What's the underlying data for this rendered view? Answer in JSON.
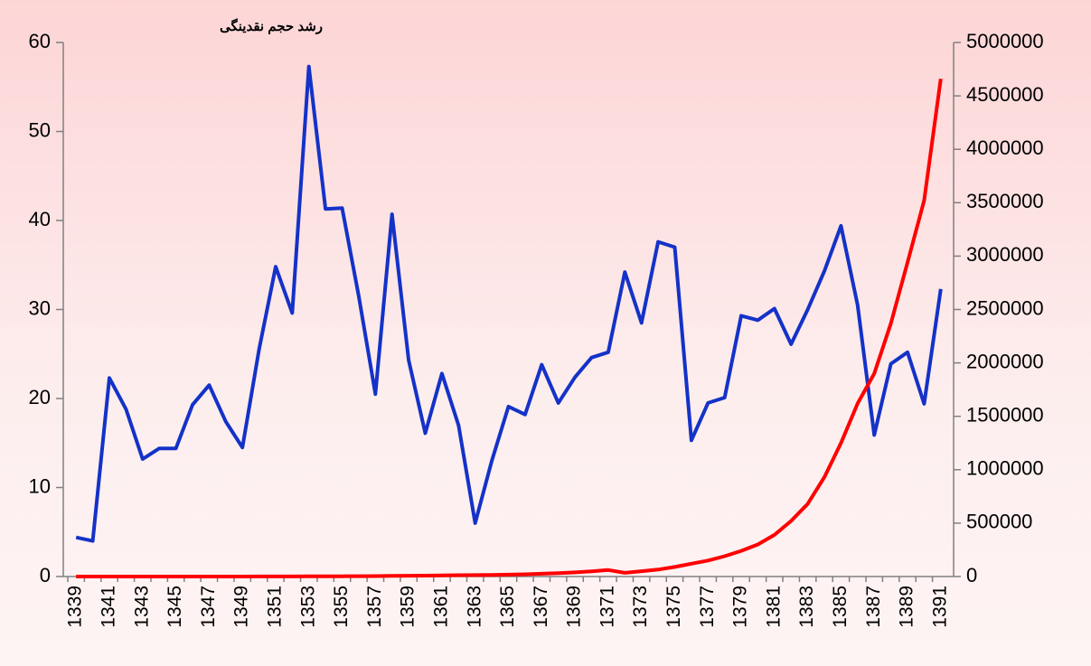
{
  "chart_data": {
    "type": "line",
    "title": "رشد حجم نقدینگی",
    "categories": [
      "1339",
      null,
      "1341",
      null,
      "1343",
      null,
      "1345",
      null,
      "1347",
      null,
      "1349",
      null,
      "1351",
      null,
      "1353",
      null,
      "1355",
      null,
      "1357",
      null,
      "1359",
      null,
      "1361",
      null,
      "1363",
      null,
      "1365",
      null,
      "1367",
      null,
      "1369",
      null,
      "1371",
      null,
      "1373",
      null,
      "1375",
      null,
      "1377",
      null,
      "1379",
      null,
      "1381",
      null,
      "1383",
      null,
      "1385",
      null,
      "1387",
      null,
      "1389",
      null,
      "1391"
    ],
    "series": [
      {
        "color": "#1432c8",
        "values": [
          4.4,
          4.0,
          22.3,
          18.8,
          13.2,
          14.4,
          14.4,
          19.3,
          21.5,
          17.4,
          14.5,
          25.5,
          34.8,
          29.6,
          57.3,
          41.3,
          41.4,
          31.5,
          20.5,
          40.7,
          24.3,
          16.1,
          22.8,
          17.0,
          6.0,
          13.0,
          19.1,
          18.2,
          23.8,
          19.5,
          22.4,
          24.6,
          25.2,
          34.2,
          28.5,
          37.6,
          37.0,
          15.3,
          19.5,
          20.1,
          29.3,
          28.8,
          30.1,
          26.1,
          30.0,
          34.3,
          39.4,
          30.5,
          15.9,
          23.9,
          25.2,
          19.4,
          32.3
        ]
      },
      {
        "color": "#ff0000",
        "axis": "y2",
        "values": [
          90,
          95,
          115,
          135,
          155,
          175,
          200,
          240,
          290,
          340,
          390,
          490,
          660,
          860,
          1350,
          1900,
          2700,
          3600,
          4300,
          6100,
          7600,
          8800,
          10800,
          12700,
          13400,
          15200,
          18100,
          21400,
          26500,
          31700,
          38800,
          48300,
          60500,
          35000,
          50000,
          65000,
          90000,
          120000,
          150000,
          190000,
          240000,
          300000,
          390000,
          520000,
          680000,
          930000,
          1250000,
          1620000,
          1900000,
          2370000,
          2940000,
          3520000,
          4660000
        ]
      }
    ],
    "ylim": [
      0,
      60
    ],
    "yticks": [
      0,
      10,
      20,
      30,
      40,
      50,
      60
    ],
    "y2lim": [
      0,
      5000000
    ],
    "y2ticks": [
      0,
      500000,
      1000000,
      1500000,
      2000000,
      2500000,
      3000000,
      3500000,
      4000000,
      4500000,
      5000000
    ]
  }
}
